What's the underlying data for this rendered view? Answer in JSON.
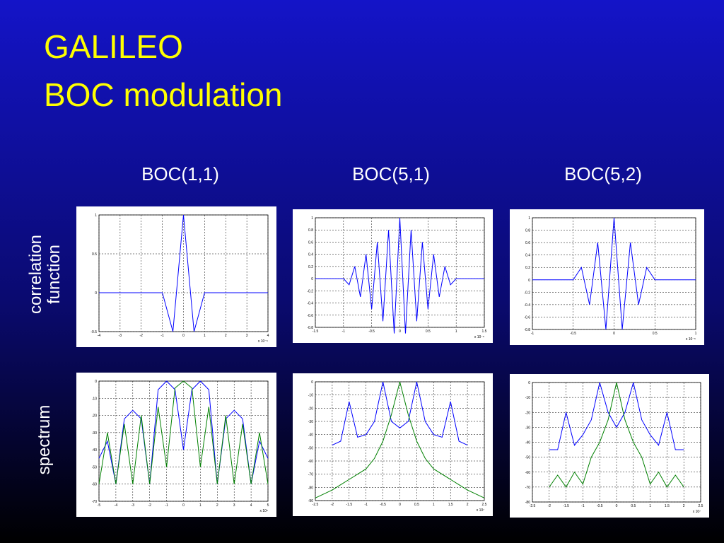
{
  "title_lines": [
    "GALILEO",
    "BOC modulation"
  ],
  "column_headers": [
    "BOC(1,1)",
    "BOC(5,1)",
    "BOC(5,2)"
  ],
  "row_labels": [
    [
      "correlation",
      "function"
    ],
    [
      "spectrum"
    ]
  ],
  "chart_data": [
    {
      "type": "line",
      "xlim": [
        -4,
        4
      ],
      "xticks": [
        -4,
        -3,
        -2,
        -1,
        0,
        1,
        2,
        3,
        4
      ],
      "ylim": [
        -0.5,
        1
      ],
      "yticks": [
        -0.5,
        0,
        0.5,
        1
      ],
      "grid": true,
      "x_scale_label": "x 10⁻⁶",
      "x": [
        -4,
        -1,
        -0.5,
        0,
        0.5,
        1,
        4
      ],
      "series": [
        {
          "color": "#0000ff",
          "values": [
            0,
            0,
            -0.5,
            1,
            -0.5,
            0,
            0
          ]
        }
      ]
    },
    {
      "type": "line",
      "xlim": [
        -1.5,
        1.5
      ],
      "xticks": [
        -1.5,
        -1,
        -0.5,
        0,
        0.5,
        1,
        1.5
      ],
      "ylim": [
        -0.8,
        1
      ],
      "yticks": [
        -0.8,
        -0.6,
        -0.4,
        -0.2,
        0,
        0.2,
        0.4,
        0.6,
        0.8,
        1
      ],
      "grid": true,
      "x_scale_label": "x 10⁻⁶",
      "x": [
        -1.5,
        -1,
        -0.9,
        -0.8,
        -0.7,
        -0.6,
        -0.5,
        -0.4,
        -0.3,
        -0.2,
        -0.1,
        0,
        0.1,
        0.2,
        0.3,
        0.4,
        0.5,
        0.6,
        0.7,
        0.8,
        0.9,
        1,
        1.5
      ],
      "series": [
        {
          "color": "#0000ff",
          "values": [
            0,
            0,
            -0.1,
            0.2,
            -0.3,
            0.4,
            -0.5,
            0.6,
            -0.7,
            0.8,
            -0.9,
            1,
            -0.9,
            0.8,
            -0.7,
            0.6,
            -0.5,
            0.4,
            -0.3,
            0.2,
            -0.1,
            0,
            0
          ]
        }
      ]
    },
    {
      "type": "line",
      "xlim": [
        -1,
        1
      ],
      "xticks": [
        -1,
        -0.5,
        0,
        0.5,
        1
      ],
      "ylim": [
        -0.8,
        1
      ],
      "yticks": [
        -0.8,
        -0.6,
        -0.4,
        -0.2,
        0,
        0.2,
        0.4,
        0.6,
        0.8,
        1
      ],
      "grid": true,
      "x_scale_label": "x 10⁻⁶",
      "x": [
        -1,
        -0.5,
        -0.4,
        -0.3,
        -0.2,
        -0.1,
        0,
        0.1,
        0.2,
        0.3,
        0.4,
        0.5,
        1
      ],
      "series": [
        {
          "color": "#0000ff",
          "values": [
            0,
            0,
            0.2,
            -0.4,
            0.6,
            -0.8,
            1,
            -0.8,
            0.6,
            -0.4,
            0.2,
            0,
            0
          ]
        }
      ]
    },
    {
      "type": "line",
      "xlim": [
        -5,
        5
      ],
      "xticks": [
        -5,
        -4,
        -3,
        -2,
        -1,
        0,
        1,
        2,
        3,
        4,
        5
      ],
      "ylim": [
        -70,
        0
      ],
      "yticks": [
        -70,
        -60,
        -50,
        -40,
        -30,
        -20,
        -10,
        0
      ],
      "grid": true,
      "x_scale_label": "x 10⁶",
      "x": [
        -5,
        -4.5,
        -4,
        -3.5,
        -3,
        -2.5,
        -2,
        -1.5,
        -1,
        -0.5,
        0,
        0.5,
        1,
        1.5,
        2,
        2.5,
        3,
        3.5,
        4,
        4.5,
        5
      ],
      "series": [
        {
          "color": "#0000ff",
          "values": [
            -45,
            -35,
            -60,
            -22,
            -17,
            -22,
            -60,
            -5,
            0,
            -5,
            -40,
            -5,
            0,
            -5,
            -60,
            -22,
            -17,
            -22,
            -60,
            -35,
            -45
          ]
        },
        {
          "color": "#008000",
          "values": [
            -60,
            -30,
            -60,
            -25,
            -60,
            -20,
            -60,
            -15,
            -50,
            -4,
            0,
            -4,
            -50,
            -15,
            -60,
            -20,
            -60,
            -25,
            -60,
            -30,
            -60
          ]
        }
      ]
    },
    {
      "type": "line",
      "xlim": [
        -2.5,
        2.5
      ],
      "xticks": [
        -2.5,
        -2,
        -1.5,
        -1,
        -0.5,
        0,
        0.5,
        1,
        1.5,
        2,
        2.5
      ],
      "ylim": [
        -90,
        0
      ],
      "yticks": [
        -90,
        -80,
        -70,
        -60,
        -50,
        -40,
        -30,
        -20,
        -10,
        0
      ],
      "grid": true,
      "x_scale_label": "x 10⁷",
      "x": [
        -2.5,
        -2.25,
        -2,
        -1.75,
        -1.5,
        -1.25,
        -1,
        -0.75,
        -0.5,
        -0.25,
        0,
        0.25,
        0.5,
        0.75,
        1,
        1.25,
        1.5,
        1.75,
        2,
        2.25,
        2.5
      ],
      "series": [
        {
          "color": "#0000ff",
          "values": [
            null,
            null,
            -48,
            -45,
            -15,
            -42,
            -40,
            -30,
            0,
            -30,
            -35,
            -30,
            0,
            -30,
            -40,
            -42,
            -15,
            -45,
            -48,
            null,
            null
          ]
        },
        {
          "color": "#008000",
          "values": [
            -88,
            -85,
            -82,
            -78,
            -74,
            -70,
            -66,
            -58,
            -45,
            -25,
            0,
            -25,
            -45,
            -58,
            -66,
            -70,
            -74,
            -78,
            -82,
            -85,
            -88
          ]
        }
      ]
    },
    {
      "type": "line",
      "xlim": [
        -2.5,
        2.5
      ],
      "xticks": [
        -2.5,
        -2,
        -1.5,
        -1,
        -0.5,
        0,
        0.5,
        1,
        1.5,
        2,
        2.5
      ],
      "ylim": [
        -80,
        0
      ],
      "yticks": [
        -80,
        -70,
        -60,
        -50,
        -40,
        -30,
        -20,
        -10,
        0
      ],
      "grid": true,
      "x_scale_label": "x 10⁷",
      "x": [
        -2.5,
        -2.25,
        -2,
        -1.75,
        -1.5,
        -1.25,
        -1,
        -0.75,
        -0.5,
        -0.25,
        0,
        0.25,
        0.5,
        0.75,
        1,
        1.25,
        1.5,
        1.75,
        2,
        2.25,
        2.5
      ],
      "series": [
        {
          "color": "#0000ff",
          "values": [
            null,
            null,
            -45,
            -45,
            -20,
            -42,
            -35,
            -25,
            0,
            -20,
            -30,
            -20,
            0,
            -25,
            -35,
            -42,
            -20,
            -45,
            -45,
            null,
            null
          ]
        },
        {
          "color": "#008000",
          "values": [
            null,
            null,
            -70,
            -62,
            -70,
            -60,
            -68,
            -50,
            -40,
            -25,
            0,
            -25,
            -40,
            -50,
            -68,
            -60,
            -70,
            -62,
            -70,
            null,
            null
          ]
        }
      ]
    }
  ]
}
